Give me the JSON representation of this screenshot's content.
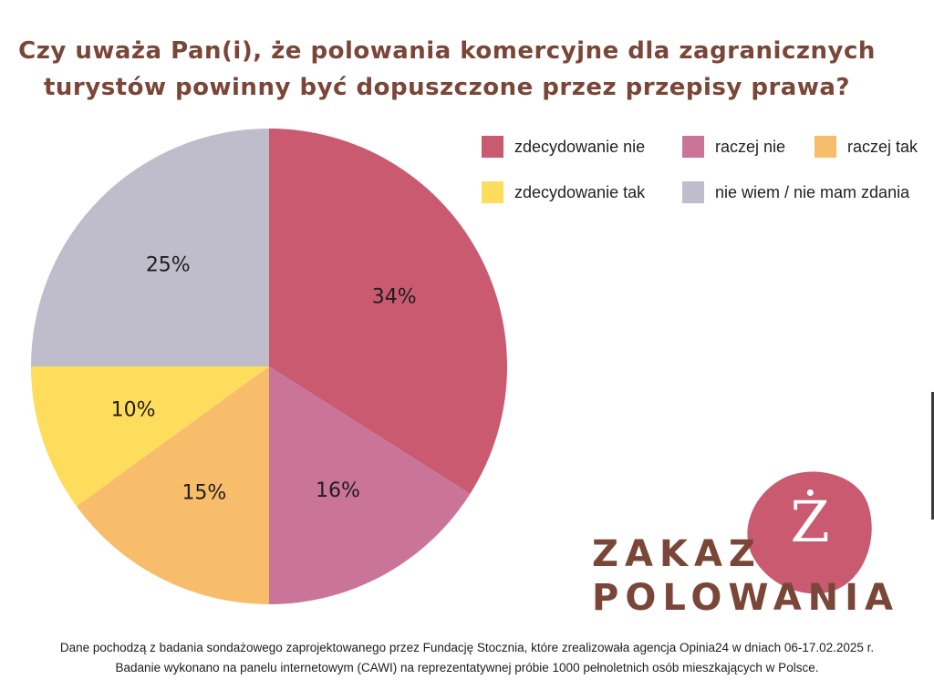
{
  "title_lines": [
    "Czy uważa Pan(i), że polowania komercyjne dla zagranicznych",
    "turystów powinny być dopuszczone przez przepisy prawa?"
  ],
  "chart_data": {
    "type": "pie",
    "title": "Czy uważa Pan(i), że polowania komercyjne dla zagranicznych turystów powinny być dopuszczone przez przepisy prawa?",
    "slices": [
      {
        "label": "zdecydowanie nie",
        "value": 34,
        "display": "34%",
        "color": "#c95a70"
      },
      {
        "label": "raczej nie",
        "value": 16,
        "display": "16%",
        "color": "#c97498"
      },
      {
        "label": "raczej tak",
        "value": 15,
        "display": "15%",
        "color": "#f8bd6a"
      },
      {
        "label": "zdecydowanie tak",
        "value": 10,
        "display": "10%",
        "color": "#fedc5c"
      },
      {
        "label": "nie wiem / nie mam zdania",
        "value": 25,
        "display": "25%",
        "color": "#bfbccb"
      }
    ],
    "start": "12 o'clock",
    "direction": "clockwise",
    "legend_placement": "top-right"
  },
  "logo": {
    "line1": "ZAKAZ",
    "line2": "POLOWANIA",
    "mark": "Ż",
    "blob_color": "#c95a70",
    "text_color": "#7a4638"
  },
  "footer_lines": [
    "Dane pochodzą z badania sondażowego zaprojektowanego przez Fundację Stocznia, które zrealizowała agencja Opinia24 w dniach 06-17.02.2025 r.",
    "Badanie wykonano na panelu internetowym (CAWI) na reprezentatywnej próbie 1000 pełnoletnich osób mieszkających w Polsce."
  ]
}
